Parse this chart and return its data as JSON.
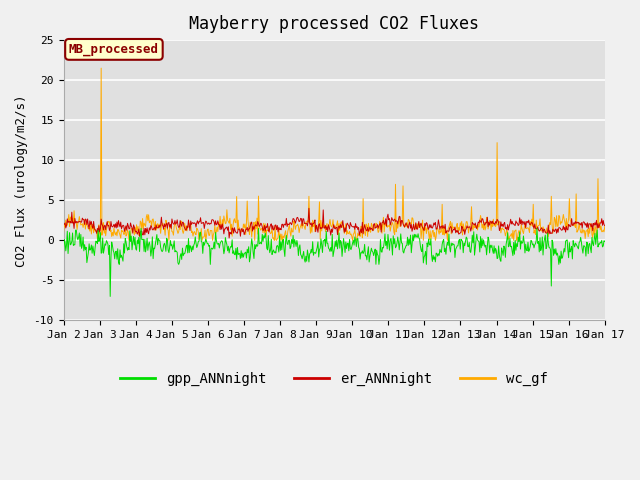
{
  "title": "Mayberry processed CO2 Fluxes",
  "ylabel": "CO2 Flux (urology/m2/s)",
  "ylim": [
    -10,
    25
  ],
  "yticks": [
    -10,
    -5,
    0,
    5,
    10,
    15,
    20,
    25
  ],
  "xtick_labels": [
    "Jan 2",
    "Jan 3",
    "Jan 4",
    "Jan 5",
    "Jan 6",
    "Jan 7",
    "Jan 8",
    "Jan 9",
    "Jan 10",
    "Jan 11",
    "Jan 12",
    "Jan 13",
    "Jan 14",
    "Jan 15",
    "Jan 16",
    "Jan 17"
  ],
  "fig_bg_color": "#f0f0f0",
  "plot_bg_color": "#e0e0e0",
  "grid_color": "#ffffff",
  "legend_label": "MB_processed",
  "legend_bg_color": "#ffffcc",
  "legend_border_color": "#8b0000",
  "legend_text_color": "#8b0000",
  "line_green": "#00dd00",
  "line_red": "#cc0000",
  "line_orange": "#ffaa00",
  "title_fontsize": 12,
  "axis_fontsize": 9,
  "tick_fontsize": 8,
  "legend_fontsize": 10
}
